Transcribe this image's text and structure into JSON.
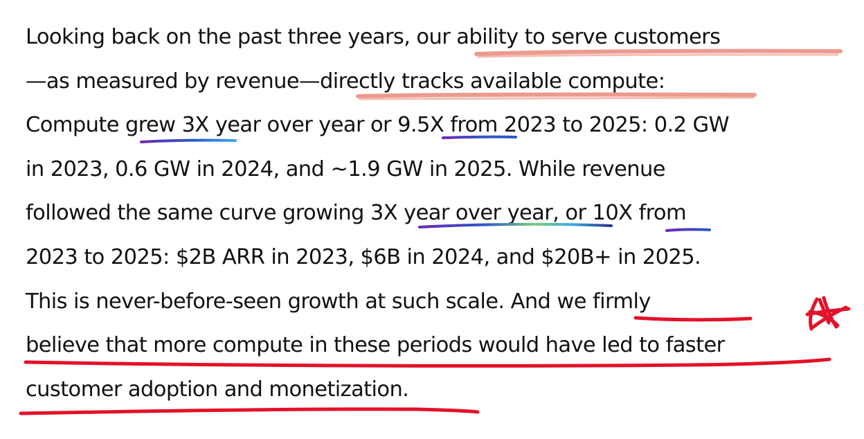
{
  "document": {
    "lines": [
      {
        "pre": "Looking back on the past three years, ",
        "hl": "our ability to serve customers",
        "post": ""
      },
      {
        "pre": "—as measured by revenue—",
        "hl": "directly tracks available compute",
        "post": ":"
      },
      {
        "pre": "Compute ",
        "hl": "grew 3X",
        "mid": " year over year or ",
        "hl2": "9.5X",
        "post": " from 2023 to 2025: 0.2 GW"
      },
      {
        "pre": "in 2023, 0.6 GW in 2024, and ~1.9 GW in 2025. While revenue",
        "hl": "",
        "post": ""
      },
      {
        "pre": "followed the same curve growing ",
        "hl": "3X year over year",
        "mid": ", or ",
        "hl2": "10X",
        "post": " from"
      },
      {
        "pre": "2023 to 2025: $2B ARR in 2023, $6B in 2024, and $20B+ in 2025.",
        "hl": "",
        "post": ""
      },
      {
        "pre": "This is never-before-seen growth at such scale. And ",
        "hl": "we firmly",
        "post": ""
      },
      {
        "pre": "",
        "hl": "believe that more compute in these periods would have led to faster",
        "post": ""
      },
      {
        "pre": "",
        "hl": "customer adoption and monetization.",
        "post": ""
      }
    ]
  },
  "annotations": {
    "orange_color": "#e88a7a",
    "gradient_colors": [
      "#6a2bb5",
      "#2a58c8",
      "#38a8e8",
      "#7ed07a"
    ],
    "red_color": "#e3122a",
    "star_icon": "hand-drawn-star-icon"
  }
}
